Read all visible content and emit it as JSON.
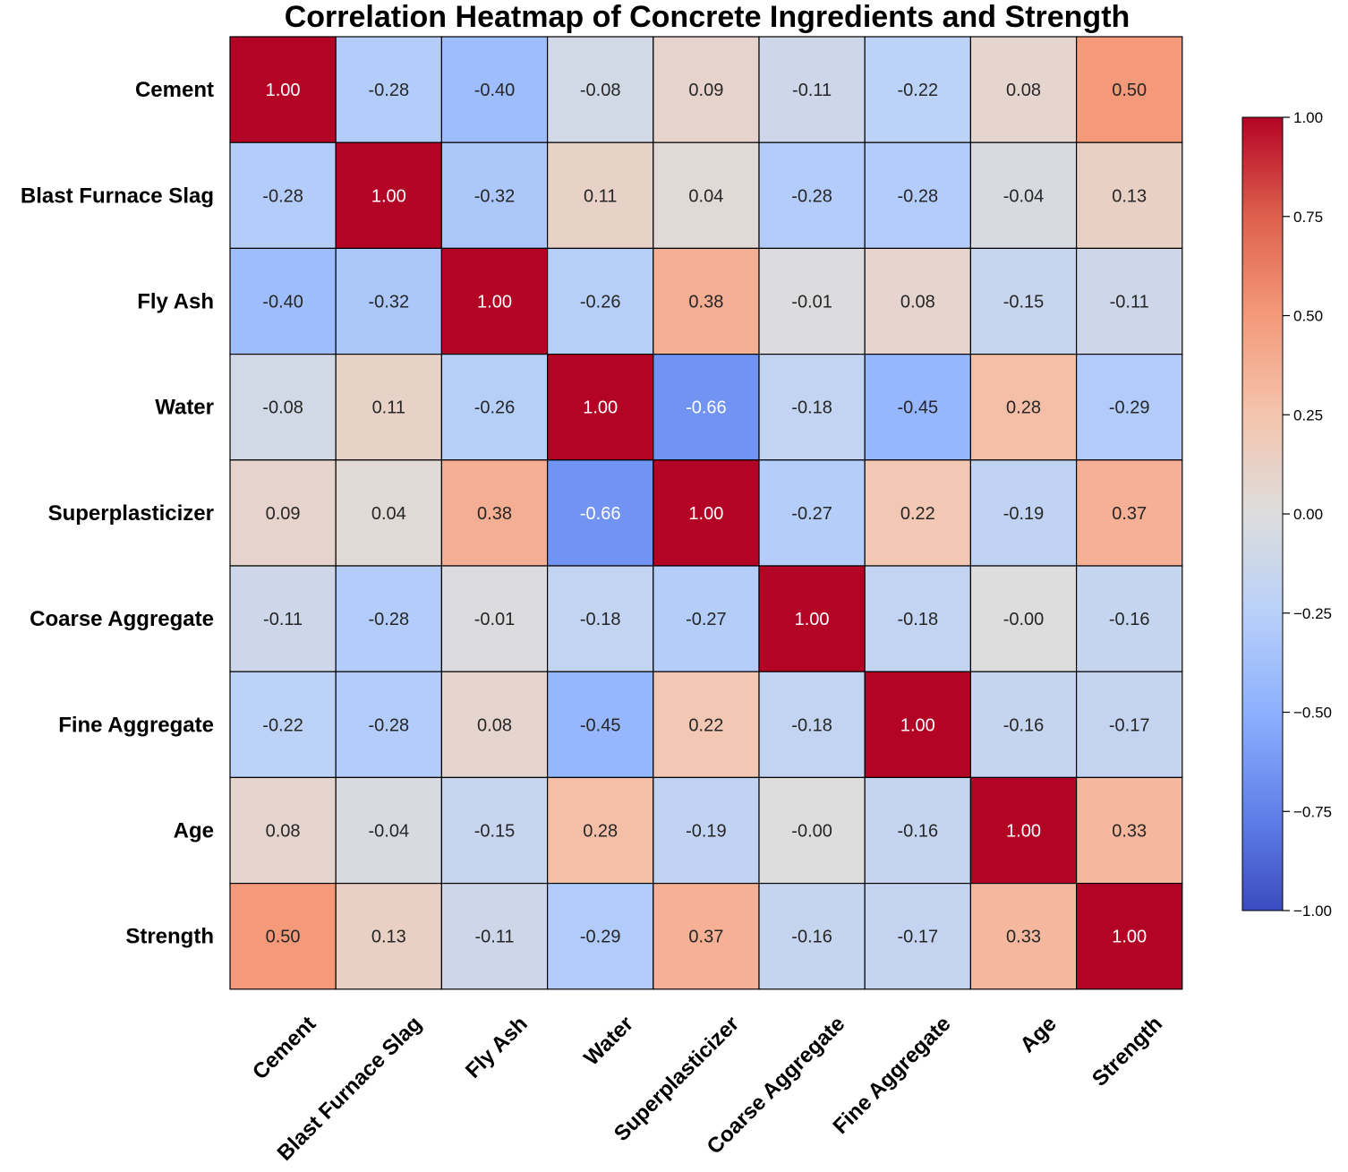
{
  "chart_data": {
    "type": "heatmap",
    "title": "Correlation Heatmap of Concrete Ingredients and Strength",
    "labels": [
      "Cement",
      "Blast Furnace Slag",
      "Fly Ash",
      "Water",
      "Superplasticizer",
      "Coarse Aggregate",
      "Fine Aggregate",
      "Age",
      "Strength"
    ],
    "matrix": [
      [
        1.0,
        -0.28,
        -0.4,
        -0.08,
        0.09,
        -0.11,
        -0.22,
        0.08,
        0.5
      ],
      [
        -0.28,
        1.0,
        -0.32,
        0.11,
        0.04,
        -0.28,
        -0.28,
        -0.04,
        0.13
      ],
      [
        -0.4,
        -0.32,
        1.0,
        -0.26,
        0.38,
        -0.01,
        0.08,
        -0.15,
        -0.11
      ],
      [
        -0.08,
        0.11,
        -0.26,
        1.0,
        -0.66,
        -0.18,
        -0.45,
        0.28,
        -0.29
      ],
      [
        0.09,
        0.04,
        0.38,
        -0.66,
        1.0,
        -0.27,
        0.22,
        -0.19,
        0.37
      ],
      [
        -0.11,
        -0.28,
        -0.01,
        -0.18,
        -0.27,
        1.0,
        -0.18,
        -0.0,
        -0.16
      ],
      [
        -0.22,
        -0.28,
        0.08,
        -0.45,
        0.22,
        -0.18,
        1.0,
        -0.16,
        -0.17
      ],
      [
        0.08,
        -0.04,
        -0.15,
        0.28,
        -0.19,
        -0.0,
        -0.16,
        1.0,
        0.33
      ],
      [
        0.5,
        0.13,
        -0.11,
        -0.29,
        0.37,
        -0.16,
        -0.17,
        0.33,
        1.0
      ]
    ],
    "display": [
      [
        "1.00",
        "-0.28",
        "-0.40",
        "-0.08",
        "0.09",
        "-0.11",
        "-0.22",
        "0.08",
        "0.50"
      ],
      [
        "-0.28",
        "1.00",
        "-0.32",
        "0.11",
        "0.04",
        "-0.28",
        "-0.28",
        "-0.04",
        "0.13"
      ],
      [
        "-0.40",
        "-0.32",
        "1.00",
        "-0.26",
        "0.38",
        "-0.01",
        "0.08",
        "-0.15",
        "-0.11"
      ],
      [
        "-0.08",
        "0.11",
        "-0.26",
        "1.00",
        "-0.66",
        "-0.18",
        "-0.45",
        "0.28",
        "-0.29"
      ],
      [
        "0.09",
        "0.04",
        "0.38",
        "-0.66",
        "1.00",
        "-0.27",
        "0.22",
        "-0.19",
        "0.37"
      ],
      [
        "-0.11",
        "-0.28",
        "-0.01",
        "-0.18",
        "-0.27",
        "1.00",
        "-0.18",
        "-0.00",
        "-0.16"
      ],
      [
        "-0.22",
        "-0.28",
        "0.08",
        "-0.45",
        "0.22",
        "-0.18",
        "1.00",
        "-0.16",
        "-0.17"
      ],
      [
        "0.08",
        "-0.04",
        "-0.15",
        "0.28",
        "-0.19",
        "-0.00",
        "-0.16",
        "1.00",
        "0.33"
      ],
      [
        "0.50",
        "0.13",
        "-0.11",
        "-0.29",
        "0.37",
        "-0.16",
        "-0.17",
        "0.33",
        "1.00"
      ]
    ],
    "colormap": "coolwarm",
    "vmin": -1.0,
    "vmax": 1.0,
    "colorbar_ticks": [
      "1.00",
      "0.75",
      "0.50",
      "0.25",
      "0.00",
      "−0.25",
      "−0.50",
      "−0.75",
      "−1.00"
    ],
    "colorbar_tick_values": [
      1.0,
      0.75,
      0.5,
      0.25,
      0.0,
      -0.25,
      -0.5,
      -0.75,
      -1.0
    ],
    "colorbar_placement": "right",
    "cell_border_color": "#000000"
  }
}
